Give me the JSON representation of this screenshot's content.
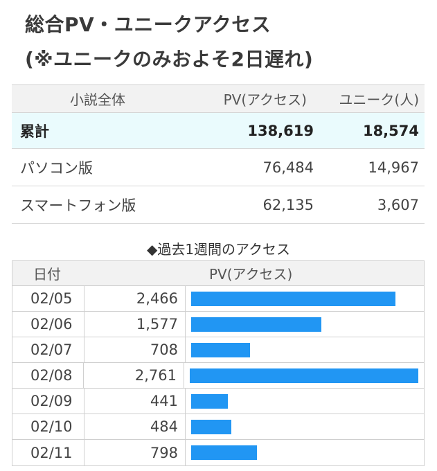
{
  "header": {
    "title_line1": "総合PV・ユニークアクセス",
    "title_line2": "(※ユニークのみおよそ2日遅れ)"
  },
  "summary": {
    "columns": [
      "小説全体",
      "PV(アクセス)",
      "ユニーク(人)"
    ],
    "rows": [
      {
        "label": "累計",
        "pv": "138,619",
        "unique": "18,574"
      },
      {
        "label": "パソコン版",
        "pv": "76,484",
        "unique": "14,967"
      },
      {
        "label": "スマートフォン版",
        "pv": "62,135",
        "unique": "3,607"
      }
    ]
  },
  "weekly": {
    "title": "◆過去1週間のアクセス",
    "columns": [
      "日付",
      "PV(アクセス)"
    ],
    "bar_color": "#2196f3"
  },
  "chart_data": {
    "type": "bar",
    "categories": [
      "02/05",
      "02/06",
      "02/07",
      "02/08",
      "02/09",
      "02/10",
      "02/11"
    ],
    "values": [
      2466,
      1577,
      708,
      2761,
      441,
      484,
      798
    ],
    "labels": [
      "2,466",
      "1,577",
      "708",
      "2,761",
      "441",
      "484",
      "798"
    ],
    "title": "◆過去1週間のアクセス",
    "xlabel": "日付",
    "ylabel": "PV(アクセス)"
  }
}
